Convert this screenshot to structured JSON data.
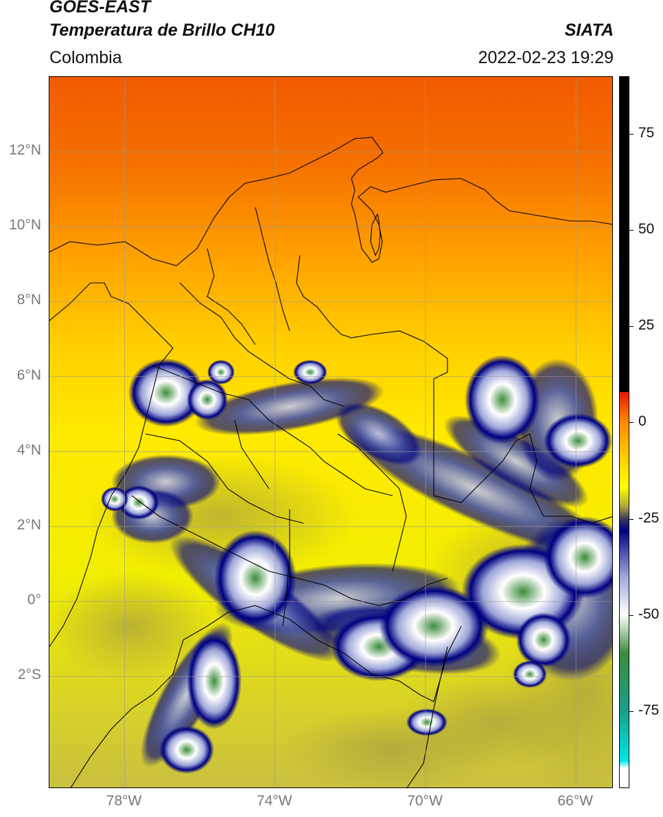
{
  "header": {
    "satellite": "GOES-EAST",
    "product": "Temperatura de Brillo CH10",
    "organization": "SIATA",
    "region": "Colombia",
    "datetime": "2022-02-23 19:29"
  },
  "map": {
    "lon_range": [
      -80,
      -65
    ],
    "lat_range": [
      -5,
      14
    ],
    "lat_ticks": [
      "12°N",
      "10°N",
      "8°N",
      "6°N",
      "4°N",
      "2°N",
      "0°",
      "2°S"
    ],
    "lat_values": [
      12,
      10,
      8,
      6,
      4,
      2,
      0,
      -2
    ],
    "lon_ticks": [
      "78°W",
      "74°W",
      "70°W",
      "66°W"
    ],
    "lon_values": [
      -78,
      -74,
      -70,
      -66
    ],
    "grid": true
  },
  "colorbar": {
    "ticks": [
      "75",
      "50",
      "25",
      "0",
      "-25",
      "-50",
      "-75"
    ],
    "values": [
      75,
      50,
      25,
      0,
      -25,
      -50,
      -75
    ],
    "range": [
      -95,
      90
    ],
    "stops": [
      {
        "v": 90,
        "color": "#000000"
      },
      {
        "v": 8,
        "color": "#000000"
      },
      {
        "v": 7.9,
        "color": "#e8180c"
      },
      {
        "v": 0,
        "color": "#ff8c00"
      },
      {
        "v": -10,
        "color": "#ffd400"
      },
      {
        "v": -17,
        "color": "#ffff00"
      },
      {
        "v": -22,
        "color": "#a8a040"
      },
      {
        "v": -25,
        "color": "#3c3c5a"
      },
      {
        "v": -28,
        "color": "#000080"
      },
      {
        "v": -40,
        "color": "#9ea6d8"
      },
      {
        "v": -50,
        "color": "#ffffff"
      },
      {
        "v": -60,
        "color": "#3c8c3c"
      },
      {
        "v": -75,
        "color": "#1a9f8a"
      },
      {
        "v": -88,
        "color": "#00e6e6"
      },
      {
        "v": -90,
        "color": "#ffffff"
      },
      {
        "v": -95,
        "color": "#ffffff"
      }
    ]
  }
}
